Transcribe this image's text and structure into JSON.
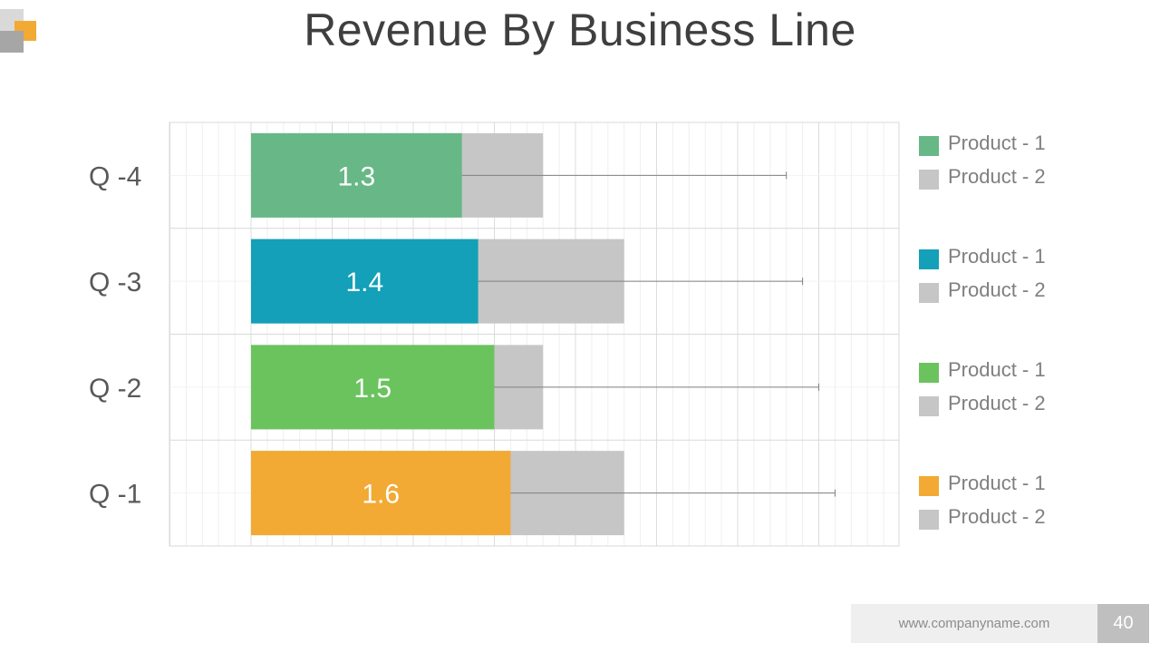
{
  "slide": {
    "title": "Revenue By Business Line",
    "footer_url": "www.companyname.com",
    "page_number": "40"
  },
  "colors": {
    "logo_gray_light": "#d9d9d9",
    "logo_gray_dark": "#a6a6a6",
    "logo_orange": "#f2aa34"
  },
  "chart_data": {
    "type": "bar",
    "orientation": "horizontal",
    "stacked": false,
    "title": "Revenue By Business Line",
    "categories": [
      "Q -4",
      "Q -3",
      "Q -2",
      "Q -1"
    ],
    "xlim": [
      0,
      4.5
    ],
    "grid": true,
    "series": [
      {
        "name": "Product - 1",
        "values": [
          1.3,
          1.4,
          1.5,
          1.6
        ],
        "colors": [
          "#67b886",
          "#13a0b8",
          "#6bc35e",
          "#f2aa34"
        ],
        "data_labels": [
          "1.3",
          "1.4",
          "1.5",
          "1.6"
        ]
      },
      {
        "name": "Product - 2",
        "values": [
          1.8,
          2.3,
          1.8,
          2.3
        ],
        "color": "#c6c6c6"
      }
    ],
    "error_bars": [
      3.3,
      3.4,
      3.5,
      3.6
    ],
    "legend": {
      "position": "right",
      "groups": [
        {
          "items": [
            {
              "label": "Product - 1",
              "color": "#67b886"
            },
            {
              "label": "Product - 2",
              "color": "#c6c6c6"
            }
          ]
        },
        {
          "items": [
            {
              "label": "Product - 1",
              "color": "#13a0b8"
            },
            {
              "label": "Product - 2",
              "color": "#c6c6c6"
            }
          ]
        },
        {
          "items": [
            {
              "label": "Product - 1",
              "color": "#6bc35e"
            },
            {
              "label": "Product - 2",
              "color": "#c6c6c6"
            }
          ]
        },
        {
          "items": [
            {
              "label": "Product - 1",
              "color": "#f2aa34"
            },
            {
              "label": "Product - 2",
              "color": "#c6c6c6"
            }
          ]
        }
      ]
    }
  }
}
